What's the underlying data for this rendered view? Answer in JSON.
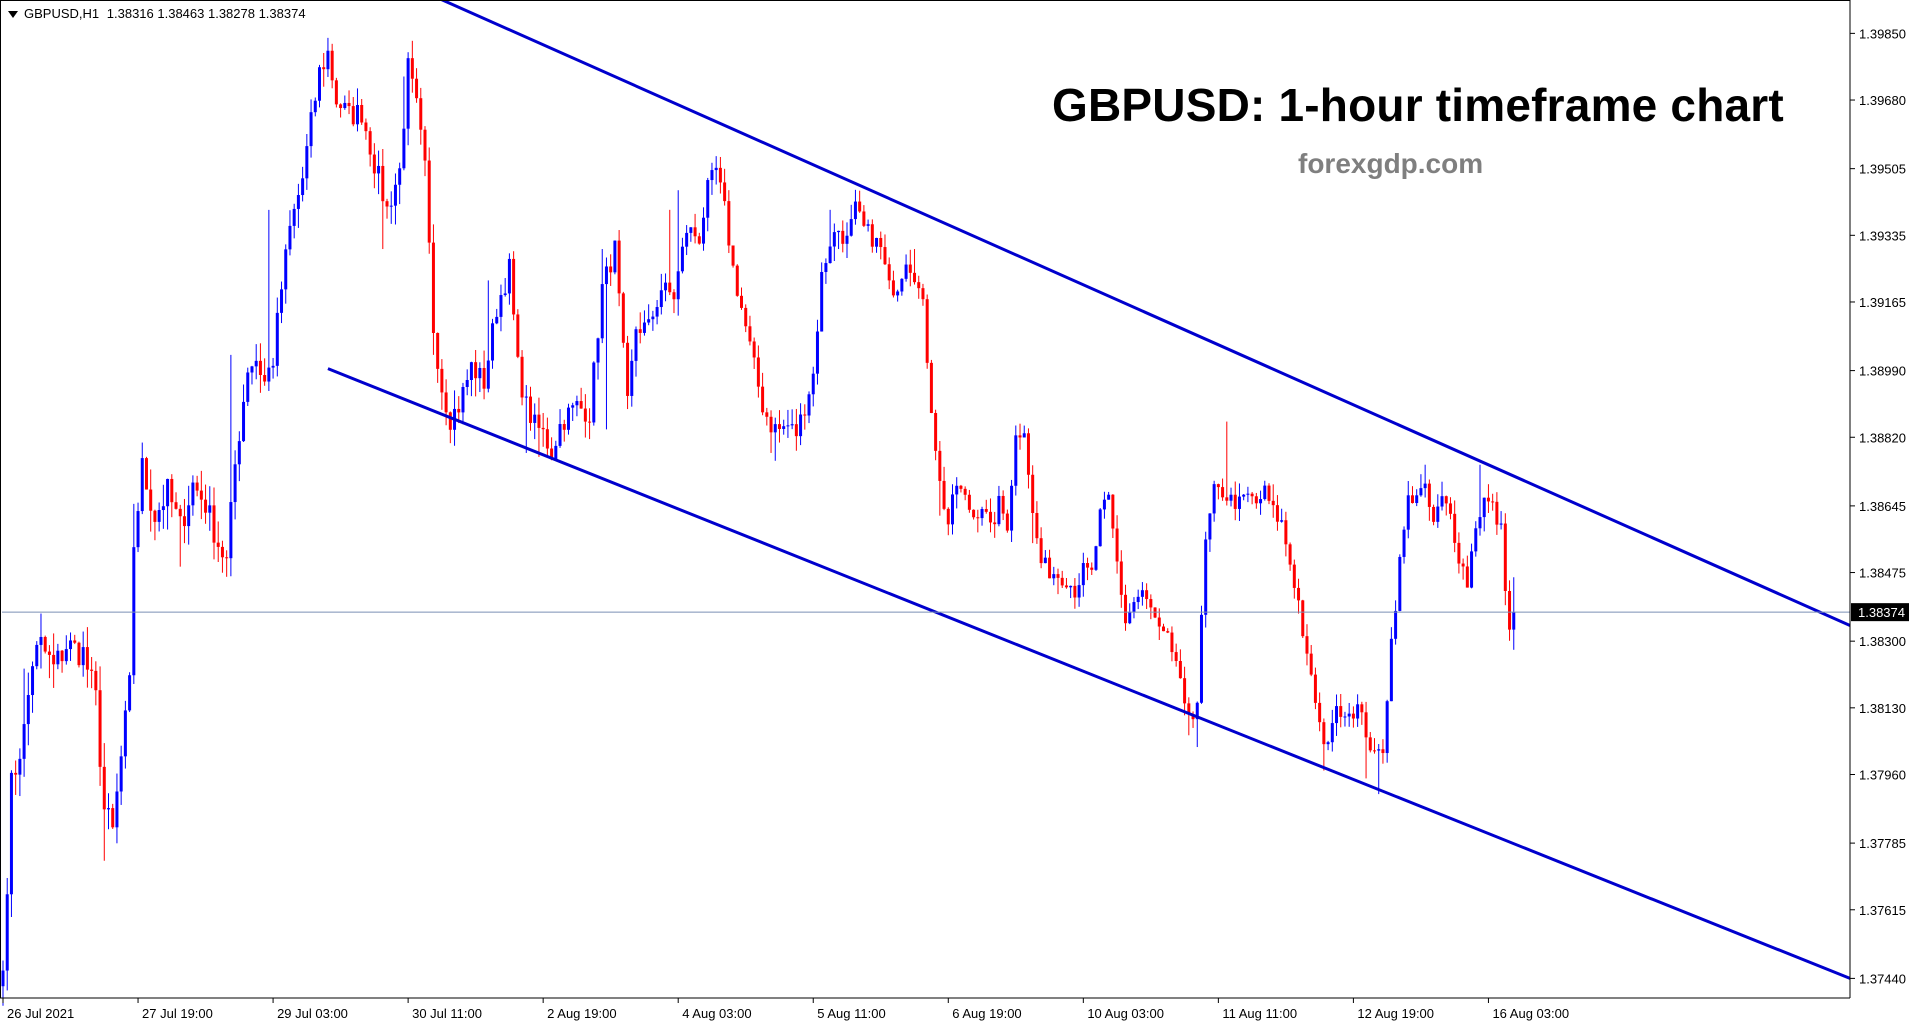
{
  "header": {
    "symbol": "GBPUSD,H1",
    "ohlc": "1.38316 1.38463 1.38278 1.38374"
  },
  "title": "GBPUSD: 1-hour timeframe chart",
  "subtitle": "forexgdp.com",
  "colors": {
    "bull": "#0000ff",
    "bear": "#ff0000",
    "channel": "#0000cd",
    "priceline": "#7a8fb5",
    "axis": "#000000",
    "pricebox": "#000000"
  },
  "chart_data": {
    "type": "candlestick",
    "symbol": "GBPUSD",
    "timeframe": "H1",
    "current_price": 1.38374,
    "current_price_label": "1.38374",
    "y_ticks": [
      "1.39850",
      "1.39680",
      "1.39505",
      "1.39335",
      "1.39165",
      "1.38990",
      "1.38820",
      "1.38645",
      "1.38475",
      "1.38300",
      "1.38130",
      "1.37960",
      "1.37785",
      "1.37615",
      "1.37440"
    ],
    "ylim": [
      1.3739,
      1.3993
    ],
    "x_labels": [
      "26 Jul 2021",
      "27 Jul 19:00",
      "29 Jul 03:00",
      "30 Jul 11:00",
      "2 Aug 19:00",
      "4 Aug 03:00",
      "5 Aug 11:00",
      "6 Aug 19:00",
      "10 Aug 03:00",
      "11 Aug 11:00",
      "12 Aug 19:00",
      "16 Aug 03:00"
    ],
    "x_label_bars": [
      0,
      32,
      64,
      96,
      128,
      160,
      192,
      224,
      256,
      288,
      320,
      352
    ],
    "channel": {
      "upper": [
        [
          101,
          1.3995
        ],
        [
          460,
          1.3834
        ]
      ],
      "lower": [
        [
          77,
          1.38995
        ],
        [
          460,
          1.3744
        ]
      ]
    },
    "anchors": [
      [
        0,
        1.3746
      ],
      [
        2,
        1.3793
      ],
      [
        5,
        1.3807
      ],
      [
        7,
        1.3825
      ],
      [
        9,
        1.3829
      ],
      [
        12,
        1.3823
      ],
      [
        15,
        1.3829
      ],
      [
        19,
        1.3827
      ],
      [
        22,
        1.3815
      ],
      [
        24,
        1.3787
      ],
      [
        26,
        1.3781
      ],
      [
        28,
        1.38
      ],
      [
        30,
        1.3818
      ],
      [
        31,
        1.3855
      ],
      [
        33,
        1.3874
      ],
      [
        36,
        1.3862
      ],
      [
        39,
        1.3868
      ],
      [
        42,
        1.3859
      ],
      [
        45,
        1.387
      ],
      [
        48,
        1.3865
      ],
      [
        51,
        1.3855
      ],
      [
        53,
        1.385
      ],
      [
        55,
        1.3875
      ],
      [
        58,
        1.39
      ],
      [
        60,
        1.3902
      ],
      [
        62,
        1.3896
      ],
      [
        64,
        1.3902
      ],
      [
        66,
        1.392
      ],
      [
        68,
        1.3935
      ],
      [
        71,
        1.3948
      ],
      [
        73,
        1.3962
      ],
      [
        75,
        1.3975
      ],
      [
        77,
        1.398
      ],
      [
        79,
        1.3968
      ],
      [
        82,
        1.3964
      ],
      [
        85,
        1.3965
      ],
      [
        88,
        1.3952
      ],
      [
        91,
        1.394
      ],
      [
        94,
        1.395
      ],
      [
        96,
        1.3976
      ],
      [
        98,
        1.3966
      ],
      [
        100,
        1.395
      ],
      [
        102,
        1.391
      ],
      [
        104,
        1.3895
      ],
      [
        106,
        1.3887
      ],
      [
        108,
        1.389
      ],
      [
        111,
        1.39
      ],
      [
        114,
        1.3896
      ],
      [
        117,
        1.3915
      ],
      [
        120,
        1.3925
      ],
      [
        122,
        1.39
      ],
      [
        124,
        1.389
      ],
      [
        126,
        1.3885
      ],
      [
        128,
        1.3883
      ],
      [
        130,
        1.3878
      ],
      [
        132,
        1.3885
      ],
      [
        134,
        1.3888
      ],
      [
        136,
        1.389
      ],
      [
        139,
        1.3888
      ],
      [
        142,
        1.392
      ],
      [
        145,
        1.393
      ],
      [
        148,
        1.389
      ],
      [
        150,
        1.391
      ],
      [
        153,
        1.391
      ],
      [
        156,
        1.392
      ],
      [
        159,
        1.3918
      ],
      [
        162,
        1.3935
      ],
      [
        165,
        1.3933
      ],
      [
        167,
        1.3945
      ],
      [
        169,
        1.395
      ],
      [
        171,
        1.394
      ],
      [
        173,
        1.3925
      ],
      [
        175,
        1.3915
      ],
      [
        176,
        1.391
      ],
      [
        178,
        1.39
      ],
      [
        180,
        1.389
      ],
      [
        182,
        1.3885
      ],
      [
        184,
        1.3884
      ],
      [
        186,
        1.3885
      ],
      [
        188,
        1.3883
      ],
      [
        190,
        1.389
      ],
      [
        192,
        1.3898
      ],
      [
        194,
        1.3923
      ],
      [
        196,
        1.3932
      ],
      [
        198,
        1.3935
      ],
      [
        200,
        1.3932
      ],
      [
        202,
        1.394
      ],
      [
        204,
        1.3935
      ],
      [
        206,
        1.3933
      ],
      [
        208,
        1.393
      ],
      [
        210,
        1.392
      ],
      [
        212,
        1.3921
      ],
      [
        214,
        1.3928
      ],
      [
        216,
        1.3924
      ],
      [
        218,
        1.3915
      ],
      [
        220,
        1.389
      ],
      [
        222,
        1.387
      ],
      [
        224,
        1.386
      ],
      [
        226,
        1.387
      ],
      [
        228,
        1.3866
      ],
      [
        230,
        1.3862
      ],
      [
        232,
        1.3865
      ],
      [
        234,
        1.3858
      ],
      [
        236,
        1.3865
      ],
      [
        238,
        1.386
      ],
      [
        240,
        1.3882
      ],
      [
        242,
        1.3885
      ],
      [
        244,
        1.3862
      ],
      [
        246,
        1.385
      ],
      [
        248,
        1.3848
      ],
      [
        250,
        1.3847
      ],
      [
        252,
        1.3846
      ],
      [
        254,
        1.3843
      ],
      [
        256,
        1.3848
      ],
      [
        258,
        1.3847
      ],
      [
        260,
        1.3862
      ],
      [
        262,
        1.3866
      ],
      [
        264,
        1.385
      ],
      [
        266,
        1.3835
      ],
      [
        268,
        1.384
      ],
      [
        270,
        1.3842
      ],
      [
        272,
        1.3838
      ],
      [
        274,
        1.3832
      ],
      [
        276,
        1.383
      ],
      [
        278,
        1.3825
      ],
      [
        280,
        1.3812
      ],
      [
        282,
        1.3812
      ],
      [
        283,
        1.3815
      ],
      [
        285,
        1.3855
      ],
      [
        287,
        1.3868
      ],
      [
        289,
        1.3868
      ],
      [
        291,
        1.3866
      ],
      [
        293,
        1.3865
      ],
      [
        295,
        1.3867
      ],
      [
        297,
        1.3865
      ],
      [
        299,
        1.3868
      ],
      [
        301,
        1.3863
      ],
      [
        303,
        1.386
      ],
      [
        305,
        1.385
      ],
      [
        307,
        1.384
      ],
      [
        309,
        1.3825
      ],
      [
        311,
        1.3815
      ],
      [
        313,
        1.3802
      ],
      [
        315,
        1.381
      ],
      [
        317,
        1.3813
      ],
      [
        319,
        1.3812
      ],
      [
        321,
        1.3813
      ],
      [
        323,
        1.3807
      ],
      [
        325,
        1.38
      ],
      [
        327,
        1.3803
      ],
      [
        329,
        1.383
      ],
      [
        331,
        1.385
      ],
      [
        333,
        1.3866
      ],
      [
        335,
        1.3868
      ],
      [
        337,
        1.3868
      ],
      [
        339,
        1.386
      ],
      [
        341,
        1.3866
      ],
      [
        343,
        1.3862
      ],
      [
        345,
        1.3852
      ],
      [
        347,
        1.3845
      ],
      [
        349,
        1.386
      ],
      [
        351,
        1.3866
      ],
      [
        353,
        1.3864
      ],
      [
        355,
        1.3858
      ],
      [
        356,
        1.3845
      ],
      [
        357,
        1.3832
      ],
      [
        358,
        1.38374
      ]
    ],
    "swing_extremes": [
      [
        2,
        1.379
      ],
      [
        5,
        1.3823
      ],
      [
        24,
        1.3774
      ],
      [
        27,
        1.3783
      ],
      [
        31,
        1.3865
      ],
      [
        35,
        1.3865
      ],
      [
        40,
        1.3872
      ],
      [
        42,
        1.3849
      ],
      [
        43,
        1.3855
      ],
      [
        54,
        1.3903
      ],
      [
        63,
        1.394
      ],
      [
        76,
        1.398
      ],
      [
        84,
        1.396
      ],
      [
        89,
        1.3944
      ],
      [
        90,
        1.393
      ],
      [
        95,
        1.3974
      ],
      [
        102,
        1.3903
      ],
      [
        104,
        1.3889
      ],
      [
        115,
        1.3922
      ],
      [
        124,
        1.3878
      ],
      [
        127,
        1.3877
      ],
      [
        142,
        1.393
      ],
      [
        143,
        1.3884
      ],
      [
        158,
        1.394
      ],
      [
        160,
        1.3945
      ],
      [
        168,
        1.3952
      ],
      [
        182,
        1.3878
      ],
      [
        183,
        1.3876
      ],
      [
        196,
        1.394
      ],
      [
        198,
        1.393
      ],
      [
        216,
        1.393
      ],
      [
        222,
        1.3862
      ],
      [
        238,
        1.3858
      ],
      [
        240,
        1.3885
      ],
      [
        244,
        1.3855
      ],
      [
        250,
        1.3842
      ],
      [
        254,
        1.384
      ],
      [
        270,
        1.3845
      ],
      [
        281,
        1.3806
      ],
      [
        283,
        1.3803
      ],
      [
        290,
        1.3886
      ],
      [
        301,
        1.387
      ],
      [
        313,
        1.3797
      ],
      [
        323,
        1.3795
      ],
      [
        326,
        1.3791
      ],
      [
        337,
        1.3875
      ],
      [
        350,
        1.3875
      ],
      [
        354,
        1.3868
      ],
      [
        358,
        1.3827
      ]
    ],
    "volatility": [
      [
        0,
        0.0009
      ],
      [
        30,
        0.0009
      ],
      [
        60,
        0.00075
      ],
      [
        100,
        0.0007
      ],
      [
        160,
        0.0006
      ],
      [
        220,
        0.00055
      ],
      [
        260,
        0.0005
      ],
      [
        300,
        0.0005
      ],
      [
        358,
        0.00055
      ]
    ],
    "bars": 359,
    "bar_spacing_px": 4.22
  }
}
